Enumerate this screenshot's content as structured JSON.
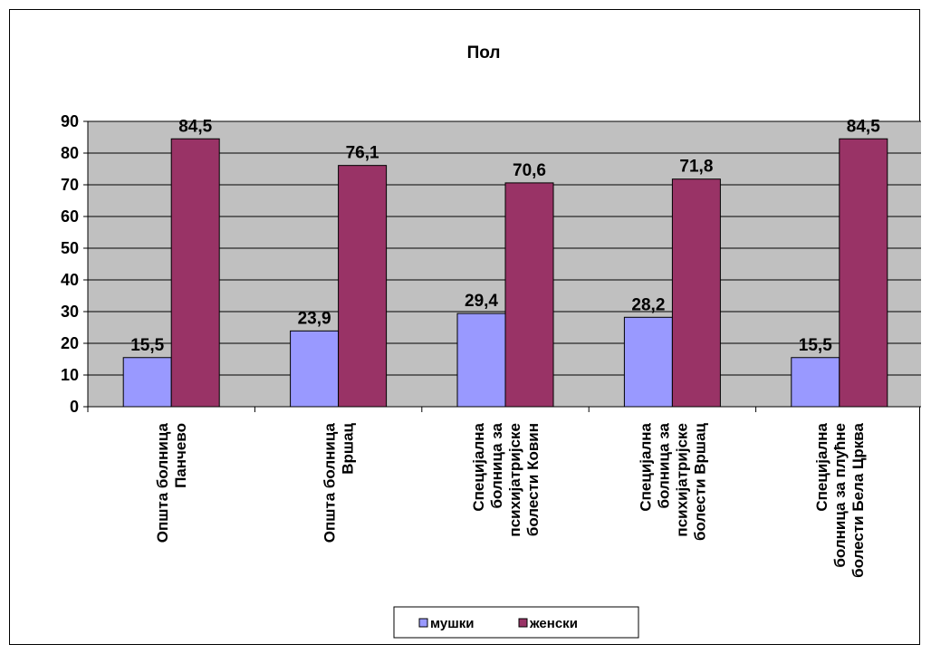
{
  "chart_data": {
    "type": "bar",
    "title": "Пол",
    "categories": [
      [
        "Општа болница",
        "Панчево"
      ],
      [
        "Општа болница",
        "Вршац"
      ],
      [
        "Специјална",
        "болница за",
        "психијатријске",
        "болести Ковин"
      ],
      [
        "Специјална",
        "болница за",
        "психијатријске",
        "болести Вршац"
      ],
      [
        "Специјална",
        "болница за плућне",
        "болести Бела Црква"
      ]
    ],
    "series": [
      {
        "name": "мушки",
        "values": [
          15.5,
          23.9,
          29.4,
          28.2,
          15.5
        ],
        "labels": [
          "15,5",
          "23,9",
          "29,4",
          "28,2",
          "15,5"
        ],
        "color": "#9999FF"
      },
      {
        "name": "женски",
        "values": [
          84.5,
          76.1,
          70.6,
          71.8,
          84.5
        ],
        "labels": [
          "84,5",
          "76,1",
          "70,6",
          "71,8",
          "84,5"
        ],
        "color": "#993366"
      }
    ],
    "ylim": [
      0,
      90
    ],
    "yticks": [
      0,
      10,
      20,
      30,
      40,
      50,
      60,
      70,
      80,
      90
    ],
    "plot_background": "#C0C0C0",
    "grid": true,
    "legend_position": "bottom"
  }
}
